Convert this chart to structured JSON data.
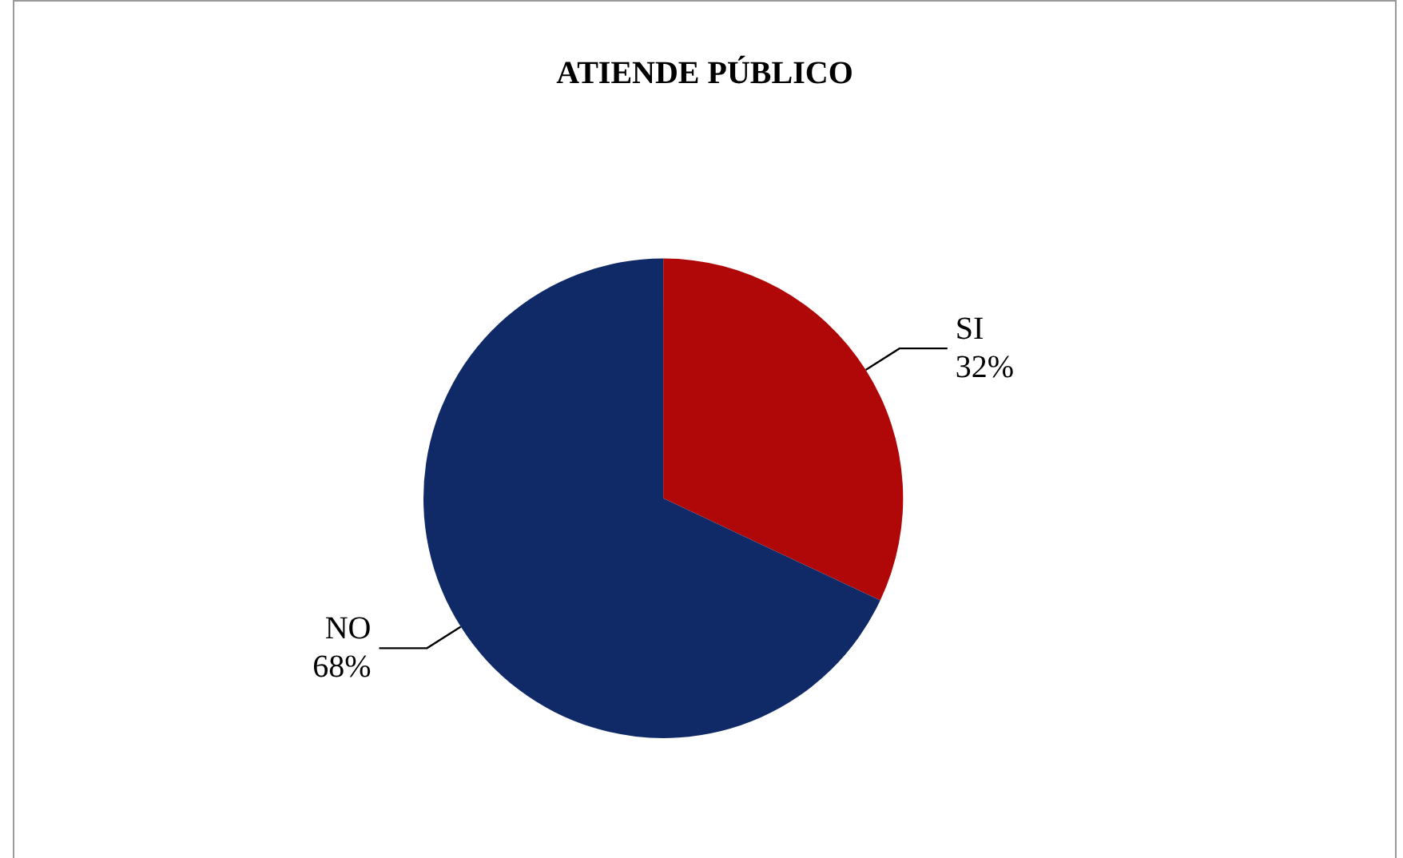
{
  "chart_data": {
    "type": "pie",
    "title": "ATIENDE PÚBLICO",
    "categories": [
      "SI",
      "NO"
    ],
    "values": [
      32,
      68
    ],
    "value_labels": [
      "32%",
      "68%"
    ],
    "colors": [
      "#b00808",
      "#102a68"
    ]
  }
}
